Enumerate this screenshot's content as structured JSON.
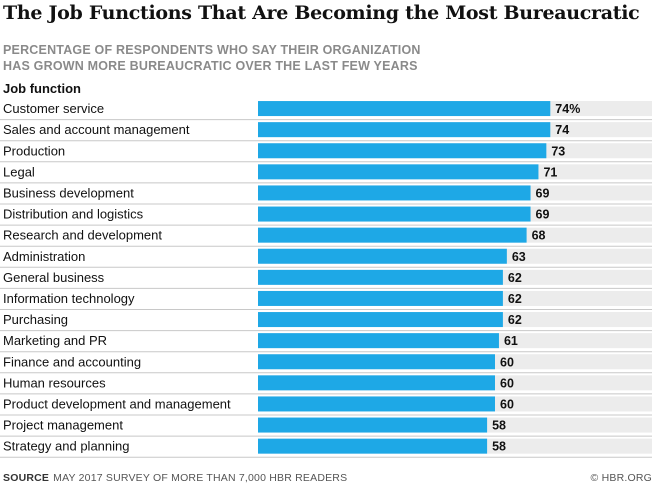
{
  "header": {
    "title": "The Job Functions That Are Becoming the Most Bureaucratic",
    "subtitle_line1": "PERCENTAGE OF RESPONDENTS WHO SAY THEIR ORGANIZATION",
    "subtitle_line2": "HAS GROWN MORE BUREAUCRATIC OVER THE LAST FEW YEARS",
    "column_header": "Job function"
  },
  "footer": {
    "source_label": "SOURCE",
    "source_text": "MAY 2017 SURVEY OF MORE THAN 7,000 HBR READERS",
    "credit": "© HBR.ORG"
  },
  "colors": {
    "bar": "#1ea8e6",
    "track": "#ececec",
    "divider": "#c8c8c8"
  },
  "chart_data": {
    "type": "bar",
    "orientation": "horizontal",
    "categories": [
      "Customer service",
      "Sales and account management",
      "Production",
      "Legal",
      "Business development",
      "Distribution and logistics",
      "Research and development",
      "Administration",
      "General business",
      "Information technology",
      "Purchasing",
      "Marketing and PR",
      "Finance and accounting",
      "Human resources",
      "Product development and management",
      "Project management",
      "Strategy and planning"
    ],
    "values": [
      74,
      74,
      73,
      71,
      69,
      69,
      68,
      63,
      62,
      62,
      62,
      61,
      60,
      60,
      60,
      58,
      58
    ],
    "value_labels": [
      "74%",
      "74",
      "73",
      "71",
      "69",
      "69",
      "68",
      "63",
      "62",
      "62",
      "62",
      "61",
      "60",
      "60",
      "60",
      "58",
      "58"
    ],
    "xlim": [
      0,
      100
    ],
    "grid": false,
    "legend": "none"
  }
}
